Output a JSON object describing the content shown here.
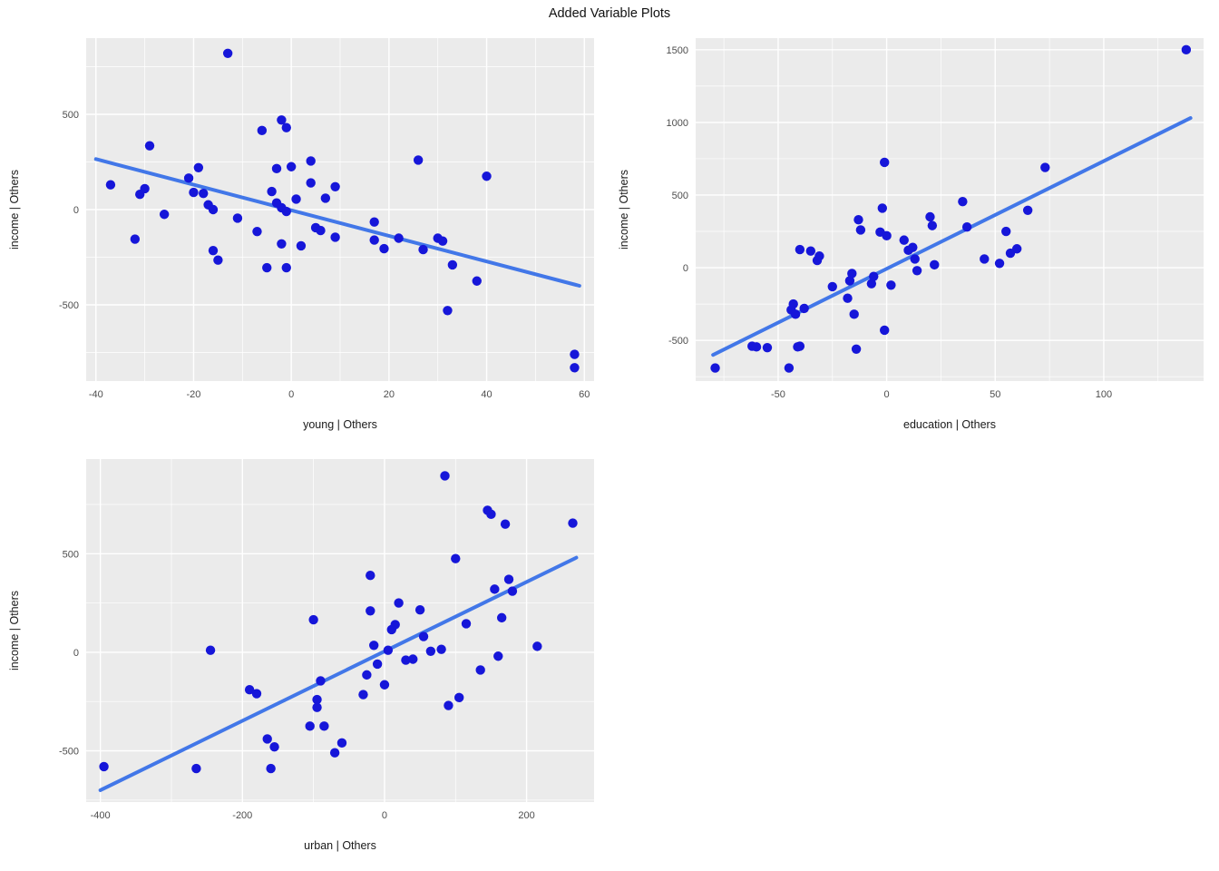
{
  "title": "Added Variable Plots",
  "style": {
    "point_color": "#1616d9",
    "line_color": "#4277e8",
    "panel_bg": "#ebebeb",
    "grid_color": "#ffffff",
    "tick_label_color": "#4d4d4d",
    "axis_title_color": "#1a1a1a"
  },
  "chart_data": [
    {
      "id": "young",
      "type": "scatter",
      "xlabel": "young | Others",
      "ylabel": "income | Others",
      "xlim": [
        -42,
        62
      ],
      "ylim": [
        -900,
        900
      ],
      "xticks": [
        -40,
        -20,
        0,
        20,
        40,
        60
      ],
      "yticks": [
        -500,
        0,
        500
      ],
      "regression_line": [
        [
          -40,
          265
        ],
        [
          59,
          -400
        ]
      ],
      "points": [
        [
          -37,
          130
        ],
        [
          -32,
          -155
        ],
        [
          -31,
          80
        ],
        [
          -30,
          110
        ],
        [
          -29,
          335
        ],
        [
          -26,
          -25
        ],
        [
          -21,
          165
        ],
        [
          -20,
          90
        ],
        [
          -19,
          220
        ],
        [
          -18,
          85
        ],
        [
          -17,
          25
        ],
        [
          -16,
          0
        ],
        [
          -16,
          -215
        ],
        [
          -15,
          -265
        ],
        [
          -13,
          820
        ],
        [
          -11,
          -45
        ],
        [
          -7,
          -115
        ],
        [
          -6,
          415
        ],
        [
          -5,
          -305
        ],
        [
          -4,
          95
        ],
        [
          -3,
          215
        ],
        [
          -3,
          35
        ],
        [
          -2,
          470
        ],
        [
          -2,
          10
        ],
        [
          -2,
          -180
        ],
        [
          -1,
          430
        ],
        [
          -1,
          -10
        ],
        [
          -1,
          -305
        ],
        [
          0,
          225
        ],
        [
          1,
          55
        ],
        [
          2,
          -190
        ],
        [
          4,
          255
        ],
        [
          4,
          140
        ],
        [
          5,
          -95
        ],
        [
          6,
          -110
        ],
        [
          7,
          60
        ],
        [
          9,
          120
        ],
        [
          9,
          -145
        ],
        [
          17,
          -65
        ],
        [
          17,
          -160
        ],
        [
          19,
          -205
        ],
        [
          22,
          -150
        ],
        [
          26,
          260
        ],
        [
          27,
          -210
        ],
        [
          30,
          -150
        ],
        [
          31,
          -165
        ],
        [
          32,
          -530
        ],
        [
          33,
          -290
        ],
        [
          38,
          -375
        ],
        [
          40,
          175
        ],
        [
          58,
          -760
        ],
        [
          58,
          -830
        ]
      ]
    },
    {
      "id": "education",
      "type": "scatter",
      "xlabel": "education | Others",
      "ylabel": "income | Others",
      "xlim": [
        -88,
        146
      ],
      "ylim": [
        -780,
        1580
      ],
      "xticks": [
        -50,
        0,
        50,
        100
      ],
      "yticks": [
        -500,
        0,
        500,
        1000,
        1500
      ],
      "regression_line": [
        [
          -80,
          -600
        ],
        [
          140,
          1030
        ]
      ],
      "points": [
        [
          -79,
          -690
        ],
        [
          -62,
          -540
        ],
        [
          -60,
          -545
        ],
        [
          -55,
          -550
        ],
        [
          -45,
          -690
        ],
        [
          -44,
          -290
        ],
        [
          -43,
          -250
        ],
        [
          -42,
          -320
        ],
        [
          -41,
          -545
        ],
        [
          -40,
          -540
        ],
        [
          -40,
          125
        ],
        [
          -38,
          -280
        ],
        [
          -35,
          115
        ],
        [
          -32,
          50
        ],
        [
          -31,
          80
        ],
        [
          -25,
          -130
        ],
        [
          -18,
          -210
        ],
        [
          -17,
          -90
        ],
        [
          -16,
          -40
        ],
        [
          -15,
          -320
        ],
        [
          -14,
          -560
        ],
        [
          -13,
          330
        ],
        [
          -12,
          260
        ],
        [
          -7,
          -110
        ],
        [
          -6,
          -60
        ],
        [
          -3,
          245
        ],
        [
          -2,
          410
        ],
        [
          -1,
          725
        ],
        [
          -1,
          -430
        ],
        [
          0,
          220
        ],
        [
          2,
          -120
        ],
        [
          8,
          190
        ],
        [
          10,
          120
        ],
        [
          12,
          140
        ],
        [
          13,
          60
        ],
        [
          14,
          -20
        ],
        [
          20,
          350
        ],
        [
          21,
          290
        ],
        [
          22,
          20
        ],
        [
          35,
          455
        ],
        [
          37,
          280
        ],
        [
          45,
          60
        ],
        [
          52,
          30
        ],
        [
          55,
          250
        ],
        [
          57,
          100
        ],
        [
          60,
          130
        ],
        [
          65,
          395
        ],
        [
          73,
          690
        ],
        [
          138,
          1500
        ]
      ]
    },
    {
      "id": "urban",
      "type": "scatter",
      "xlabel": "urban | Others",
      "ylabel": "income | Others",
      "xlim": [
        -420,
        295
      ],
      "ylim": [
        -760,
        980
      ],
      "xticks": [
        -400,
        -200,
        0,
        200
      ],
      "yticks": [
        -500,
        0,
        500
      ],
      "regression_line": [
        [
          -400,
          -700
        ],
        [
          270,
          480
        ]
      ],
      "points": [
        [
          -395,
          -580
        ],
        [
          -265,
          -590
        ],
        [
          -245,
          10
        ],
        [
          -190,
          -190
        ],
        [
          -180,
          -210
        ],
        [
          -165,
          -440
        ],
        [
          -160,
          -590
        ],
        [
          -155,
          -480
        ],
        [
          -105,
          -375
        ],
        [
          -100,
          165
        ],
        [
          -95,
          -240
        ],
        [
          -95,
          -280
        ],
        [
          -90,
          -145
        ],
        [
          -85,
          -375
        ],
        [
          -70,
          -510
        ],
        [
          -60,
          -460
        ],
        [
          -30,
          -215
        ],
        [
          -25,
          -115
        ],
        [
          -20,
          390
        ],
        [
          -20,
          210
        ],
        [
          -15,
          35
        ],
        [
          -10,
          -60
        ],
        [
          0,
          -165
        ],
        [
          5,
          10
        ],
        [
          10,
          115
        ],
        [
          15,
          140
        ],
        [
          20,
          250
        ],
        [
          30,
          -40
        ],
        [
          40,
          -35
        ],
        [
          50,
          215
        ],
        [
          55,
          80
        ],
        [
          65,
          5
        ],
        [
          80,
          15
        ],
        [
          85,
          895
        ],
        [
          90,
          -270
        ],
        [
          100,
          475
        ],
        [
          105,
          -230
        ],
        [
          115,
          145
        ],
        [
          135,
          -90
        ],
        [
          145,
          720
        ],
        [
          150,
          700
        ],
        [
          155,
          320
        ],
        [
          160,
          -20
        ],
        [
          165,
          175
        ],
        [
          170,
          650
        ],
        [
          175,
          370
        ],
        [
          180,
          310
        ],
        [
          215,
          30
        ],
        [
          265,
          655
        ]
      ]
    }
  ]
}
